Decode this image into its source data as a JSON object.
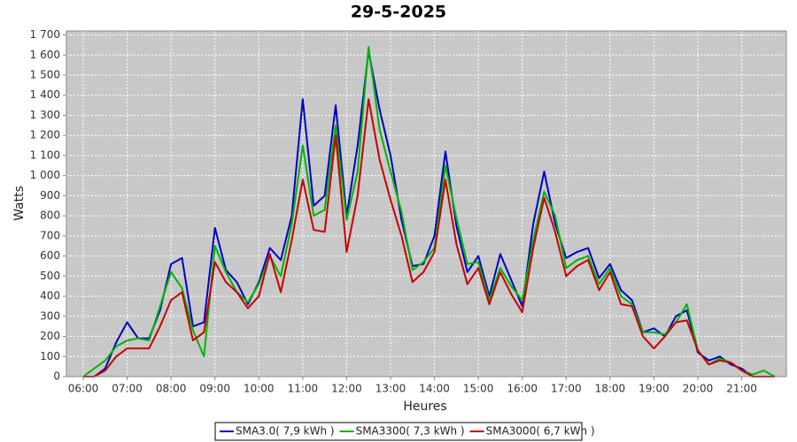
{
  "chart_data": {
    "type": "line",
    "title": "29-5-2025",
    "x_label": "Heures",
    "y_label": "Watts",
    "x": [
      "06:00",
      "06:15",
      "06:30",
      "06:45",
      "07:00",
      "07:15",
      "07:30",
      "07:45",
      "08:00",
      "08:15",
      "08:30",
      "08:45",
      "09:00",
      "09:15",
      "09:30",
      "09:45",
      "10:00",
      "10:15",
      "10:30",
      "10:45",
      "11:00",
      "11:15",
      "11:30",
      "11:45",
      "12:00",
      "12:15",
      "12:30",
      "12:45",
      "13:00",
      "13:15",
      "13:30",
      "13:45",
      "14:00",
      "14:15",
      "14:30",
      "14:45",
      "15:00",
      "15:15",
      "15:30",
      "15:45",
      "16:00",
      "16:15",
      "16:30",
      "16:45",
      "17:00",
      "17:15",
      "17:30",
      "17:45",
      "18:00",
      "18:15",
      "18:30",
      "18:45",
      "19:00",
      "19:15",
      "19:30",
      "19:45",
      "20:00",
      "20:15",
      "20:30",
      "20:45",
      "21:00",
      "21:15",
      "21:30",
      "21:45"
    ],
    "series": [
      {
        "name": "SMA3.0( 7,9 kWh )",
        "color": "#0000c8",
        "values": [
          0,
          0,
          40,
          170,
          270,
          190,
          190,
          330,
          560,
          590,
          250,
          270,
          740,
          530,
          470,
          360,
          470,
          640,
          580,
          800,
          1380,
          850,
          900,
          1350,
          800,
          1150,
          1620,
          1330,
          1100,
          780,
          550,
          560,
          700,
          1120,
          750,
          520,
          600,
          400,
          610,
          480,
          350,
          760,
          1020,
          760,
          590,
          620,
          640,
          490,
          560,
          430,
          380,
          220,
          240,
          200,
          300,
          330,
          120,
          80,
          100,
          60,
          40,
          0,
          0,
          0
        ]
      },
      {
        "name": "SMA3300( 7,3 kWh )",
        "color": "#00b400",
        "values": [
          0,
          40,
          80,
          150,
          180,
          190,
          180,
          350,
          520,
          440,
          230,
          100,
          650,
          520,
          420,
          370,
          460,
          600,
          500,
          760,
          1150,
          800,
          830,
          1250,
          780,
          1020,
          1640,
          1230,
          1020,
          820,
          530,
          570,
          640,
          1050,
          790,
          560,
          570,
          380,
          540,
          450,
          380,
          680,
          920,
          800,
          540,
          580,
          600,
          460,
          540,
          400,
          360,
          220,
          220,
          210,
          270,
          360,
          130,
          60,
          90,
          70,
          30,
          10,
          30,
          0
        ]
      },
      {
        "name": "SMA3000( 6,7 kWh )",
        "color": "#c80000",
        "values": [
          0,
          0,
          30,
          100,
          140,
          140,
          140,
          250,
          380,
          420,
          180,
          220,
          570,
          470,
          420,
          340,
          400,
          610,
          420,
          680,
          980,
          730,
          720,
          1200,
          620,
          900,
          1380,
          1080,
          880,
          700,
          470,
          520,
          620,
          980,
          660,
          460,
          540,
          360,
          520,
          410,
          320,
          640,
          890,
          720,
          500,
          550,
          580,
          430,
          520,
          360,
          350,
          200,
          140,
          200,
          270,
          280,
          130,
          60,
          80,
          70,
          30,
          0,
          0,
          0
        ]
      }
    ],
    "xlim": [
      "05:37",
      "22:01"
    ],
    "xticks": [
      "06:00",
      "07:00",
      "08:00",
      "09:00",
      "10:00",
      "11:00",
      "12:00",
      "13:00",
      "14:00",
      "15:00",
      "16:00",
      "17:00",
      "18:00",
      "19:00",
      "20:00",
      "21:00"
    ],
    "ylim": [
      0,
      1720
    ],
    "yticks": [
      0,
      100,
      200,
      300,
      400,
      500,
      600,
      700,
      800,
      900,
      {
        "value": 1000,
        "label": "1 000"
      },
      {
        "value": 1100,
        "label": "1 100"
      },
      {
        "value": 1200,
        "label": "1 200"
      },
      {
        "value": 1300,
        "label": "1 300"
      },
      {
        "value": 1400,
        "label": "1 400"
      },
      {
        "value": 1500,
        "label": "1 500"
      },
      {
        "value": 1600,
        "label": "1 600"
      },
      {
        "value": 1700,
        "label": "1 700"
      }
    ],
    "grid": true
  }
}
